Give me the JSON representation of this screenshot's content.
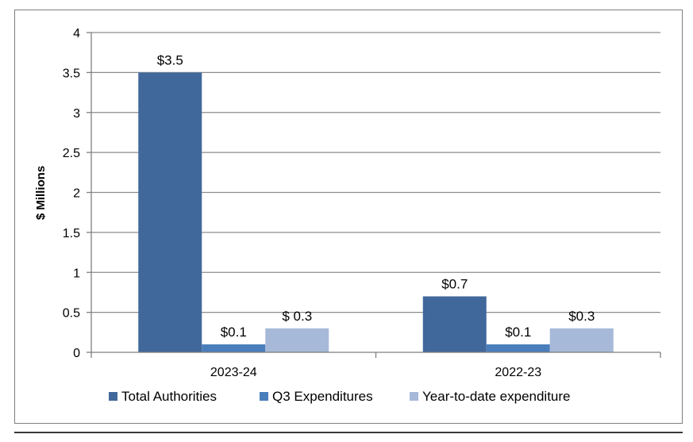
{
  "chart_data": {
    "type": "bar",
    "title": "",
    "xlabel": "",
    "ylabel": "$ Millions",
    "ylim": [
      0,
      4
    ],
    "yticks": [
      "0",
      "0.5",
      "1",
      "1.5",
      "2",
      "2.5",
      "3",
      "3.5",
      "4"
    ],
    "categories": [
      "2023-24",
      "2022-23"
    ],
    "grid": true,
    "legend_position": "bottom",
    "series": [
      {
        "name": "Total Authorities",
        "color": "#41689b",
        "values": [
          3.5,
          0.7
        ],
        "labels": [
          "$3.5",
          "$0.7"
        ]
      },
      {
        "name": "Q3 Expenditures",
        "color": "#4a7ebb",
        "values": [
          0.1,
          0.1
        ],
        "labels": [
          "$0.1",
          "$0.1"
        ]
      },
      {
        "name": "Year-to-date expenditure",
        "color": "#a6b9d9",
        "values": [
          0.3,
          0.3
        ],
        "labels": [
          "$ 0.3",
          "$0.3"
        ]
      }
    ]
  }
}
